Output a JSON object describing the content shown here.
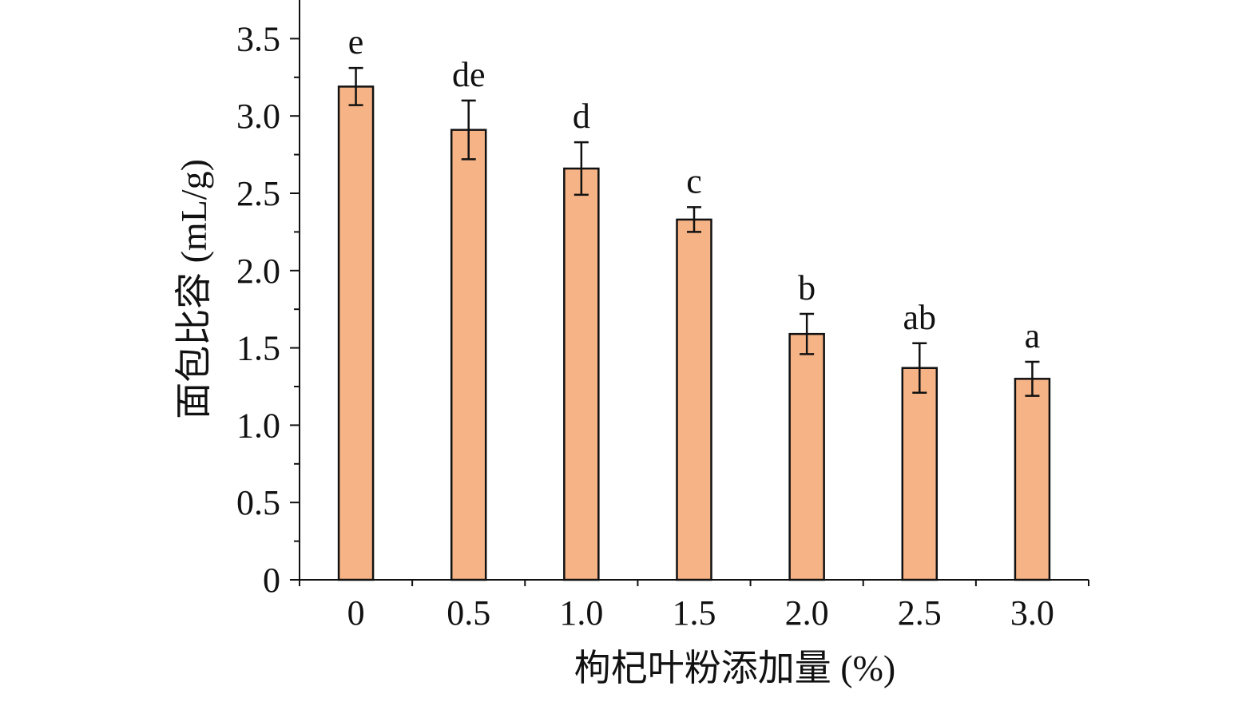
{
  "chart_data": {
    "type": "bar",
    "title": "",
    "xlabel": "枸杞叶粉添加量 (%)",
    "ylabel": "面包比容 (mL/g)",
    "categories": [
      "0",
      "0.5",
      "1.0",
      "1.5",
      "2.0",
      "2.5",
      "3.0"
    ],
    "series": [
      {
        "values": [
          3.19,
          2.91,
          2.66,
          2.33,
          1.59,
          1.37,
          1.3
        ],
        "errors": [
          0.12,
          0.19,
          0.17,
          0.08,
          0.13,
          0.16,
          0.11
        ],
        "significance_letters": [
          "e",
          "de",
          "d",
          "c",
          "b",
          "ab",
          "a"
        ]
      }
    ],
    "ylim": [
      0,
      3.75
    ],
    "yticks": [
      "0",
      "0.5",
      "1.0",
      "1.5",
      "2.0",
      "2.5",
      "3.0",
      "3.5"
    ],
    "grid": false,
    "legend": "none",
    "colors": {
      "bar_fill": "#F6B386",
      "bar_stroke": "#111111",
      "axis": "#111111"
    }
  }
}
